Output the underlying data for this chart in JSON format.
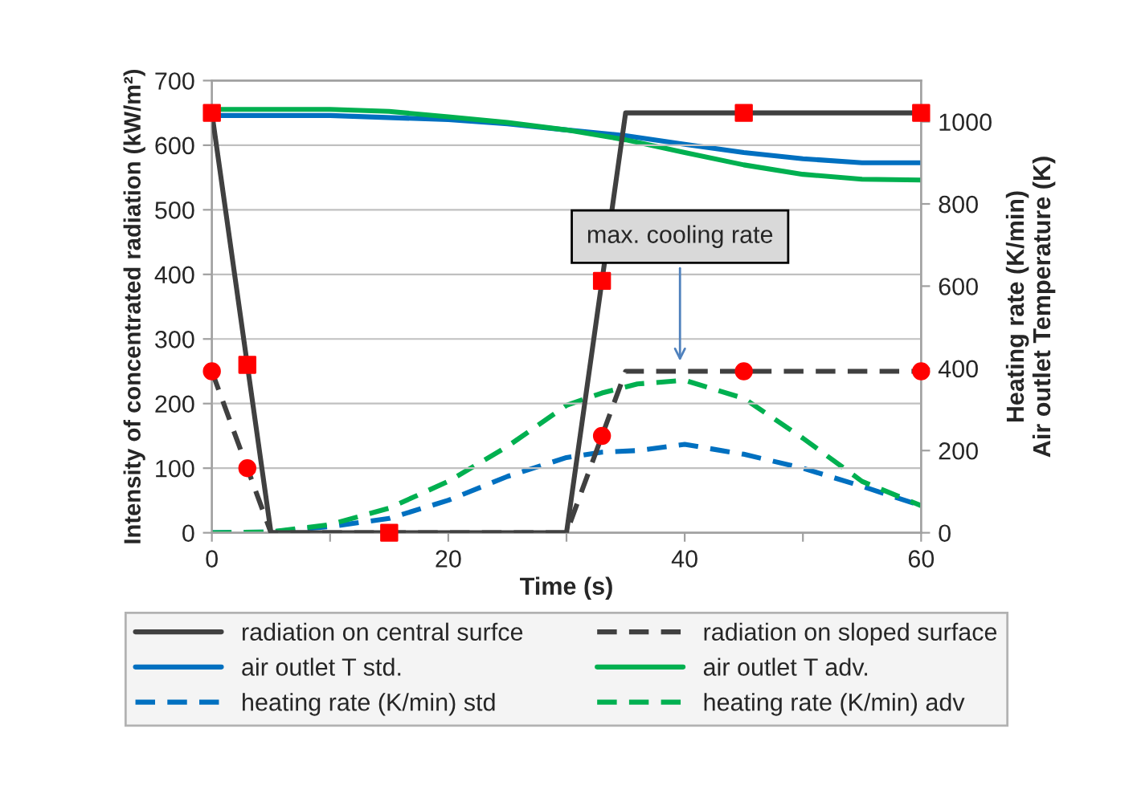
{
  "chart_data": {
    "type": "line",
    "xlabel": "Time (s)",
    "ylabel": "Intensity of concentrated radiation (kW/m²)",
    "y2label": "Heating rate (K/min)\nAir outlet Temperature (K)",
    "xlim": [
      0,
      60
    ],
    "xticks": [
      0,
      {
        "value": 10,
        "label": null
      },
      20,
      {
        "value": 30,
        "label": null
      },
      40,
      {
        "value": 50,
        "label": null
      },
      60
    ],
    "ylim": [
      0,
      700
    ],
    "yticks": [
      0,
      100,
      200,
      300,
      400,
      500,
      600,
      700
    ],
    "y2lim": [
      0,
      1100
    ],
    "y2ticks": [
      0,
      200,
      400,
      600,
      800,
      1000
    ],
    "grid": "y",
    "legend": "bottom",
    "annotations": [
      "max. cooling rate"
    ],
    "series": [
      {
        "name": "radiation on central surfce",
        "color": "#404040",
        "line_style": "solid",
        "x": [
          0,
          5,
          30,
          35,
          60
        ],
        "values": [
          650,
          0,
          0,
          650,
          650
        ]
      },
      {
        "name": "radiation on sloped surface",
        "color": "#404040",
        "line_style": "dashed",
        "x": [
          0,
          5,
          30,
          35,
          60
        ],
        "values": [
          250,
          0,
          0,
          250,
          250
        ]
      },
      {
        "name": "air outlet T std.",
        "axis": "y2",
        "color": "#0070c0",
        "line_style": "solid",
        "x": [
          0,
          10,
          20,
          25,
          30,
          35,
          40,
          45,
          50,
          55,
          60
        ],
        "values": [
          1015,
          1015,
          1005,
          995,
          980,
          966,
          945,
          925,
          910,
          900,
          900
        ]
      },
      {
        "name": "air outlet T adv.",
        "axis": "y2",
        "color": "#00b050",
        "line_style": "solid",
        "x": [
          0,
          10,
          15,
          20,
          25,
          30,
          35,
          40,
          45,
          50,
          55,
          60
        ],
        "values": [
          1030,
          1030,
          1025,
          1012,
          998,
          980,
          956,
          925,
          895,
          872,
          860,
          858
        ]
      },
      {
        "name": "heating rate (K/min) std",
        "axis": "y2",
        "color": "#0070c0",
        "line_style": "dashed",
        "x": [
          0,
          5,
          10,
          15,
          20,
          25,
          30,
          33,
          36,
          40,
          45,
          50,
          55,
          60
        ],
        "values": [
          0,
          2,
          15,
          35,
          79,
          137,
          183,
          196,
          200,
          215,
          191,
          157,
          113,
          66
        ]
      },
      {
        "name": "heating rate (K/min) adv",
        "axis": "y2",
        "color": "#00b050",
        "line_style": "dashed",
        "x": [
          0,
          5,
          10,
          15,
          20,
          25,
          30,
          33,
          36,
          40,
          45,
          50,
          55,
          60
        ],
        "values": [
          0,
          2,
          20,
          60,
          125,
          210,
          310,
          340,
          362,
          371,
          327,
          230,
          125,
          66
        ]
      },
      {
        "type": "scatter",
        "color": "#ff0000",
        "marker": "square",
        "x": [
          0,
          3,
          15,
          33,
          45,
          60
        ],
        "values": [
          650,
          260,
          0,
          390,
          650,
          650
        ]
      },
      {
        "type": "scatter",
        "color": "#ff0000",
        "marker": "circle",
        "x": [
          0,
          3,
          33,
          45,
          60
        ],
        "values": [
          250,
          100,
          150,
          250,
          250
        ]
      }
    ]
  }
}
